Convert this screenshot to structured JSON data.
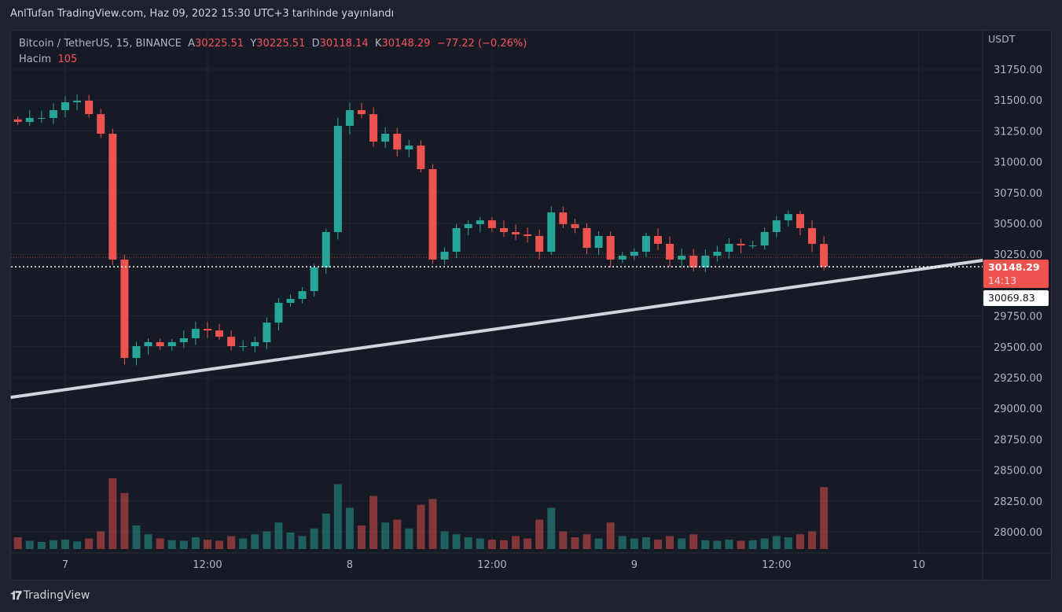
{
  "published": "AnlTufan TradingView.com, Haz 09, 2022 15:30 UTC+3 tarihinde yayınlandı",
  "legend": {
    "symbol": "Bitcoin / TetherUS, 15, BINANCE",
    "open_label": "A",
    "open": "30225.51",
    "high_label": "Y",
    "high": "30225.51",
    "low_label": "D",
    "low": "30118.14",
    "close_label": "K",
    "close": "30148.29",
    "change": "−77.22 (−0.26%)",
    "volume_label": "Hacim",
    "volume": "105"
  },
  "price_axis": {
    "currency": "USDT",
    "last_price": "30148.29",
    "countdown": "14:13",
    "crosshair_price": "30069.83"
  },
  "footer": {
    "brand": "TradingView"
  },
  "colors": {
    "up": "#26a69a",
    "down": "#ef5350",
    "background": "#161a25",
    "trendline": "#d1d4dc"
  },
  "chart_data": {
    "type": "candlestick",
    "interval_note": "approximate hourly closes (hours from Jun 7 00:00)",
    "start_hour": -4,
    "close": [
      31323,
      31355,
      31355,
      31418,
      31482,
      31495,
      31386,
      31227,
      30207,
      29409,
      29505,
      29537,
      29505,
      29537,
      29569,
      29645,
      29632,
      29581,
      29505,
      29505,
      29537,
      29696,
      29856,
      29888,
      29951,
      30143,
      30430,
      31291,
      31418,
      31386,
      31163,
      31227,
      31099,
      31131,
      30940,
      30207,
      30270,
      30462,
      30494,
      30525,
      30462,
      30430,
      30411,
      30398,
      30270,
      30589,
      30494,
      30462,
      30302,
      30398,
      30207,
      30238,
      30270,
      30398,
      30334,
      30207,
      30238,
      30143,
      30238,
      30270,
      30334,
      30321,
      30321,
      30430,
      30525,
      30576,
      30462,
      30334,
      30148
    ],
    "volume": [
      20,
      14,
      12,
      15,
      16,
      13,
      18,
      30,
      120,
      95,
      40,
      25,
      18,
      15,
      14,
      20,
      16,
      14,
      22,
      18,
      25,
      30,
      45,
      28,
      22,
      35,
      60,
      110,
      70,
      40,
      90,
      45,
      50,
      35,
      75,
      85,
      30,
      25,
      20,
      18,
      16,
      15,
      22,
      18,
      50,
      70,
      30,
      20,
      25,
      18,
      45,
      22,
      18,
      20,
      16,
      22,
      18,
      25,
      15,
      14,
      16,
      14,
      15,
      18,
      22,
      20,
      25,
      30,
      105
    ],
    "y_ticks": [
      "31750.00",
      "31500.00",
      "31250.00",
      "31000.00",
      "30750.00",
      "30500.00",
      "30250.00",
      "29750.00",
      "29500.00",
      "29250.00",
      "29000.00",
      "28750.00",
      "28500.00",
      "28250.00",
      "28000.00"
    ],
    "y_range": [
      27900,
      31960
    ],
    "x_ticks": [
      {
        "label": "7",
        "hour": 0
      },
      {
        "label": "12:00",
        "hour": 12
      },
      {
        "label": "8",
        "hour": 24
      },
      {
        "label": "12:00",
        "hour": 36
      },
      {
        "label": "9",
        "hour": 48
      },
      {
        "label": "12:00",
        "hour": 60
      },
      {
        "label": "10",
        "hour": 72
      }
    ],
    "trendline": [
      {
        "hour": -4.6,
        "price": 29090
      },
      {
        "hour": 77.4,
        "price": 30200
      }
    ],
    "last_price_line": 30148.29
  }
}
